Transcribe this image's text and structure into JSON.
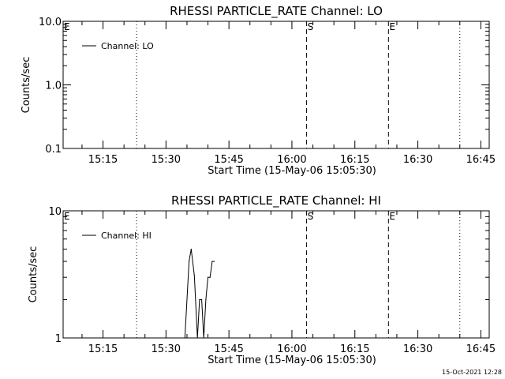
{
  "chart_data": [
    {
      "type": "line",
      "title": "RHESSI PARTICLE_RATE Channel: LO",
      "xlabel": "Start Time (15-May-06 15:05:30)",
      "ylabel": "Counts/sec",
      "xlim": [
        "15:05:30",
        "16:47:00"
      ],
      "ylim": [
        0.1,
        10.0
      ],
      "y_scale": "log",
      "x_ticks": [
        "15:15",
        "15:30",
        "15:45",
        "16:00",
        "16:15",
        "16:30",
        "16:45"
      ],
      "y_ticks": [
        "0.1",
        "1.0",
        "10.0"
      ],
      "legend": {
        "placement": "top-left",
        "entries": [
          "Channel: LO"
        ]
      },
      "series": [
        {
          "name": "Channel: LO",
          "x": [],
          "y": [],
          "color": "#000000"
        }
      ],
      "markers": [
        {
          "label": "E",
          "time": "15:05:30",
          "style": "none"
        },
        {
          "label": "",
          "time": "15:23:00",
          "style": "dotted"
        },
        {
          "label": "S",
          "time": "16:03:30",
          "style": "dashed"
        },
        {
          "label": "E",
          "time": "16:23:00",
          "style": "dashed"
        },
        {
          "label": "",
          "time": "16:40:00",
          "style": "dotted"
        }
      ]
    },
    {
      "type": "line",
      "title": "RHESSI PARTICLE_RATE Channel: HI",
      "xlabel": "Start Time (15-May-06 15:05:30)",
      "ylabel": "Counts/sec",
      "xlim": [
        "15:05:30",
        "16:47:00"
      ],
      "ylim": [
        1,
        10
      ],
      "y_scale": "log",
      "x_ticks": [
        "15:15",
        "15:30",
        "15:45",
        "16:00",
        "16:15",
        "16:30",
        "16:45"
      ],
      "y_ticks": [
        "1",
        "10"
      ],
      "legend": {
        "placement": "top-left",
        "entries": [
          "Channel: HI"
        ]
      },
      "series": [
        {
          "name": "Channel: HI",
          "x": [
            "15:34:30",
            "15:35:30",
            "15:36:00",
            "15:36:45",
            "15:37:30",
            "15:38:00",
            "15:38:30",
            "15:39:00",
            "15:39:30",
            "15:40:00",
            "15:40:30",
            "15:41:00",
            "15:41:30"
          ],
          "y": [
            1.0,
            4.0,
            5.0,
            3.1,
            1.0,
            2.0,
            2.0,
            1.0,
            2.0,
            3.0,
            3.0,
            4.0,
            4.0
          ],
          "color": "#000000"
        }
      ],
      "markers": [
        {
          "label": "E",
          "time": "15:05:30",
          "style": "none"
        },
        {
          "label": "",
          "time": "15:23:00",
          "style": "dotted"
        },
        {
          "label": "S",
          "time": "16:03:30",
          "style": "dashed"
        },
        {
          "label": "E",
          "time": "16:23:00",
          "style": "dashed"
        },
        {
          "label": "",
          "time": "16:40:00",
          "style": "dotted"
        }
      ]
    }
  ],
  "footer": {
    "timestamp": "15-Oct-2021 12:28"
  }
}
